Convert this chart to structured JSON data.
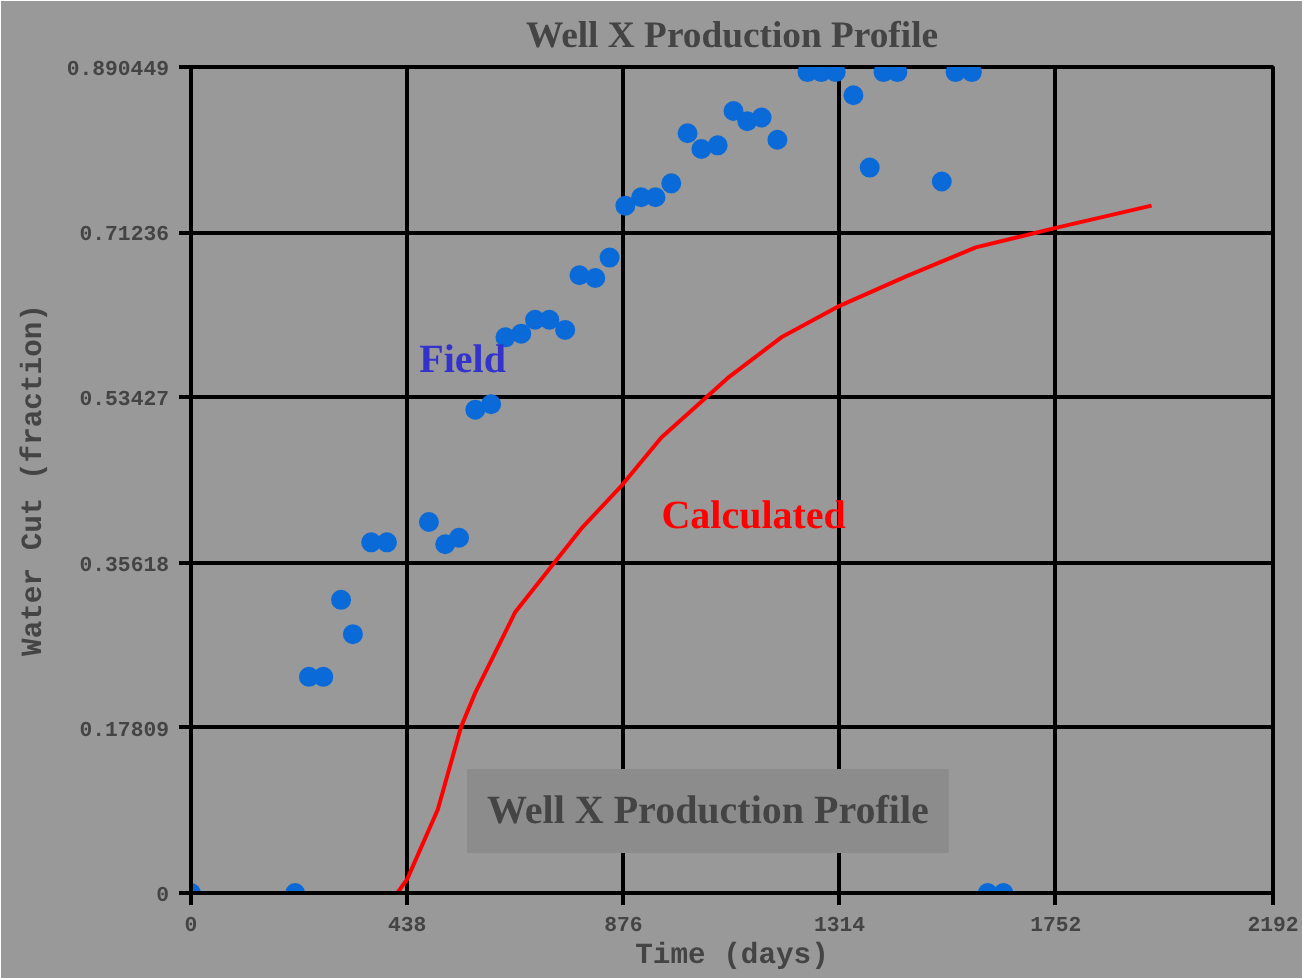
{
  "chart_data": {
    "type": "scatter",
    "title": "Well X Production Profile",
    "xlabel": "Time (days)",
    "ylabel": "Water Cut (fraction)",
    "annotations": [
      "Well X Production Profile"
    ],
    "xlim": [
      0,
      2192
    ],
    "xticks": [
      0,
      438,
      876,
      1314,
      1752,
      2192
    ],
    "ylim": [
      0,
      0.890449
    ],
    "yticks": [
      0,
      0.17809,
      0.35618,
      0.53427,
      0.71236,
      0.890449
    ],
    "grid": true,
    "marker": "circle",
    "series": [
      {
        "name": "Field",
        "color": "#0a6ad8",
        "x": [
          0,
          211,
          239,
          268,
          304,
          328,
          365,
          397,
          482,
          515,
          543,
          576,
          608,
          637,
          669,
          697,
          726,
          758,
          787,
          819,
          848,
          880,
          912,
          941,
          973,
          1006,
          1034,
          1067,
          1099,
          1127,
          1156,
          1188,
          1249,
          1277,
          1306,
          1342,
          1375,
          1403,
          1431,
          1521,
          1549,
          1582,
          1614,
          1646
        ],
        "values": [
          0,
          0,
          0.233,
          0.233,
          0.316,
          0.279,
          0.378,
          0.378,
          0.4,
          0.376,
          0.383,
          0.521,
          0.527,
          0.599,
          0.603,
          0.618,
          0.618,
          0.607,
          0.666,
          0.663,
          0.685,
          0.741,
          0.75,
          0.75,
          0.765,
          0.819,
          0.802,
          0.806,
          0.843,
          0.832,
          0.836,
          0.812,
          0.885,
          0.885,
          0.885,
          0.86,
          0.782,
          0.885,
          0.885,
          0.767,
          0.885,
          0.885,
          0,
          0
        ]
      },
      {
        "name": "Calculated",
        "type": "line",
        "color": "#ff0000",
        "marker": "none",
        "x": [
          0,
          418,
          438,
          500,
          547,
          576,
          657,
          730,
          791,
          872,
          953,
          1087,
          1196,
          1314,
          1450,
          1590,
          1752,
          1946
        ],
        "values": [
          0,
          0,
          0.015,
          0.09,
          0.179,
          0.216,
          0.303,
          0.352,
          0.393,
          0.439,
          0.491,
          0.555,
          0.599,
          0.633,
          0.665,
          0.696,
          0.717,
          0.741
        ]
      }
    ]
  }
}
